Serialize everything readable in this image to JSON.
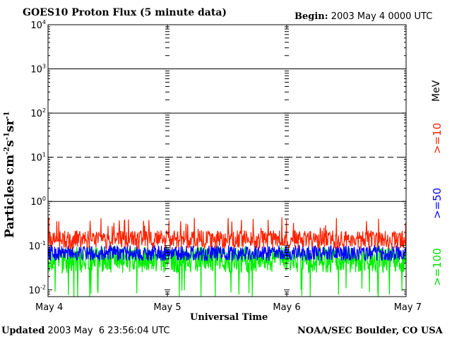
{
  "chart_data": {
    "type": "line",
    "title": "GOES10 Proton Flux (5 minute data)",
    "begin_label": "Begin:",
    "begin_value": "2003 May 4 0000 UTC",
    "xlabel": "Universal Time",
    "ylabel_main": "Particles cm",
    "ylabel_exp1": "-2",
    "ylabel_mid1": "s",
    "ylabel_exp2": "-1",
    "ylabel_mid2": "sr",
    "ylabel_exp3": "-1",
    "x_ticks": [
      "May 4",
      "May 5",
      "May 6",
      "May 7"
    ],
    "xlim": [
      0,
      3
    ],
    "y_scale": "log",
    "ylim": [
      0.007,
      10000
    ],
    "y_tick_base": "10",
    "y_tick_exps": [
      "-2",
      "-1",
      "0",
      "1",
      "2",
      "3",
      "4"
    ],
    "reference_lines": [
      {
        "value": 1,
        "style": "solid"
      },
      {
        "value": 10,
        "style": "dashed"
      },
      {
        "value": 100,
        "style": "solid"
      },
      {
        "value": 1000,
        "style": "solid"
      }
    ],
    "series": [
      {
        "name": ">=10",
        "color": "#ff2200",
        "base": 0.13,
        "spread": 0.42,
        "peak": 0.45
      },
      {
        "name": ">=50",
        "color": "#0000ff",
        "base": 0.065,
        "spread": 0.35
      },
      {
        "name": ">=100",
        "color": "#00ee00",
        "base": 0.045,
        "spread": 0.6
      }
    ],
    "legend_unit": "MeV"
  },
  "footer": {
    "updated_label": "Updated",
    "updated_value": "2003 May  6 23:56:04 UTC",
    "source": "NOAA/SEC Boulder, CO USA"
  },
  "colors": {
    "ge10": "#ff2200",
    "ge50": "#0000ff",
    "ge100": "#00dd00",
    "frame": "#000000"
  }
}
